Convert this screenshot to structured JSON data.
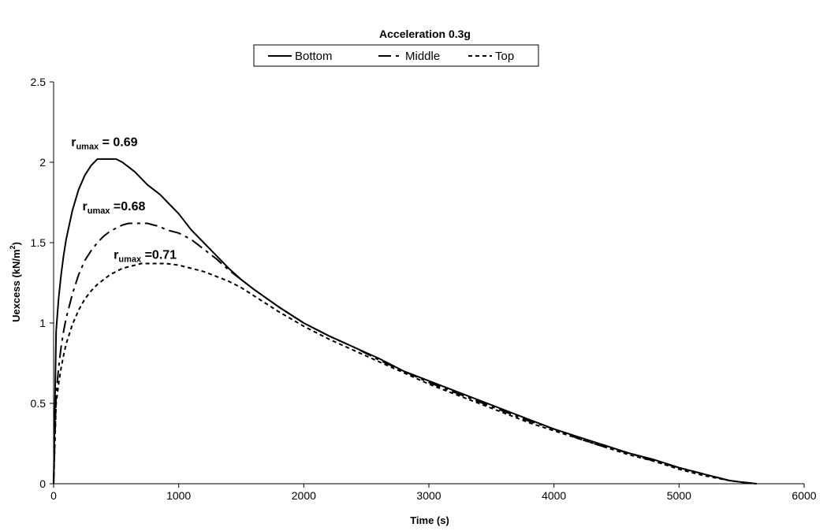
{
  "chart_data": {
    "type": "line",
    "title": "Acceleration 0.3g",
    "xlabel": "Time (s)",
    "ylabel_main": "Uexcess (kN/m",
    "ylabel_sup": "2",
    "ylabel_tail": ")",
    "xlim": [
      0,
      6000
    ],
    "ylim": [
      0,
      2.5
    ],
    "xticks": [
      0,
      1000,
      2000,
      3000,
      4000,
      5000,
      6000
    ],
    "xtick_labels": [
      "0",
      "1000",
      "2000",
      "3000",
      "4000",
      "5000",
      "6000"
    ],
    "yticks": [
      0,
      0.5,
      1,
      1.5,
      2,
      2.5
    ],
    "ytick_labels": [
      "0",
      "0.5",
      "1",
      "1.5",
      "2",
      "2.5"
    ],
    "grid": false,
    "legend_position": "top-center",
    "series": [
      {
        "name": "Bottom",
        "style": "solid",
        "color": "#000000",
        "x": [
          0,
          20,
          40,
          60,
          80,
          100,
          150,
          200,
          250,
          300,
          350,
          400,
          450,
          500,
          550,
          600,
          650,
          700,
          750,
          800,
          850,
          900,
          1000,
          1100,
          1200,
          1300,
          1400,
          1500,
          1600,
          1800,
          2000,
          2200,
          2400,
          2600,
          2800,
          3000,
          3200,
          3400,
          3600,
          3800,
          4000,
          4200,
          4400,
          4600,
          4800,
          5000,
          5200,
          5400,
          5500,
          5620
        ],
        "y": [
          0,
          0.95,
          1.15,
          1.3,
          1.42,
          1.52,
          1.7,
          1.83,
          1.92,
          1.98,
          2.02,
          2.02,
          2.02,
          2.02,
          2.0,
          1.97,
          1.94,
          1.9,
          1.86,
          1.83,
          1.8,
          1.76,
          1.68,
          1.58,
          1.5,
          1.42,
          1.34,
          1.27,
          1.21,
          1.1,
          1.0,
          0.92,
          0.85,
          0.78,
          0.7,
          0.64,
          0.58,
          0.52,
          0.46,
          0.4,
          0.34,
          0.29,
          0.24,
          0.19,
          0.15,
          0.1,
          0.06,
          0.02,
          0.01,
          0.0
        ]
      },
      {
        "name": "Middle",
        "style": "dashdot",
        "color": "#000000",
        "x": [
          0,
          20,
          40,
          60,
          80,
          100,
          150,
          200,
          250,
          300,
          350,
          400,
          450,
          500,
          550,
          600,
          650,
          700,
          750,
          800,
          850,
          900,
          1000,
          1100,
          1200,
          1300,
          1400,
          1500,
          1600,
          1800,
          2000,
          2200,
          2400,
          2600,
          2800,
          3000,
          3200,
          3400,
          3600,
          3800,
          4000,
          4200,
          4400,
          4600,
          4800,
          5000,
          5200,
          5400,
          5500,
          5620
        ],
        "y": [
          0,
          0.55,
          0.72,
          0.85,
          0.95,
          1.03,
          1.18,
          1.3,
          1.39,
          1.45,
          1.5,
          1.54,
          1.57,
          1.59,
          1.61,
          1.62,
          1.62,
          1.62,
          1.62,
          1.61,
          1.6,
          1.58,
          1.56,
          1.52,
          1.46,
          1.4,
          1.33,
          1.27,
          1.21,
          1.1,
          1.0,
          0.92,
          0.85,
          0.77,
          0.7,
          0.63,
          0.57,
          0.51,
          0.45,
          0.39,
          0.34,
          0.28,
          0.23,
          0.19,
          0.14,
          0.1,
          0.06,
          0.02,
          0.01,
          0.0
        ]
      },
      {
        "name": "Top",
        "style": "dotted",
        "color": "#000000",
        "x": [
          0,
          20,
          40,
          60,
          80,
          100,
          150,
          200,
          250,
          300,
          350,
          400,
          450,
          500,
          550,
          600,
          650,
          700,
          750,
          800,
          850,
          900,
          1000,
          1100,
          1200,
          1300,
          1400,
          1500,
          1600,
          1800,
          2000,
          2200,
          2400,
          2600,
          2800,
          3000,
          3200,
          3400,
          3600,
          3800,
          4000,
          4200,
          4400,
          4600,
          4800,
          5000,
          5200,
          5400,
          5500,
          5620
        ],
        "y": [
          0,
          0.5,
          0.62,
          0.72,
          0.8,
          0.87,
          0.99,
          1.08,
          1.15,
          1.2,
          1.24,
          1.27,
          1.3,
          1.32,
          1.34,
          1.35,
          1.36,
          1.37,
          1.37,
          1.37,
          1.37,
          1.37,
          1.36,
          1.34,
          1.32,
          1.29,
          1.26,
          1.22,
          1.17,
          1.07,
          0.98,
          0.9,
          0.83,
          0.76,
          0.69,
          0.62,
          0.56,
          0.5,
          0.44,
          0.38,
          0.33,
          0.28,
          0.23,
          0.18,
          0.14,
          0.09,
          0.05,
          0.02,
          0.01,
          0.0
        ]
      }
    ],
    "annotations": [
      {
        "main": "r",
        "sub": "umax",
        "text": " = 0.69",
        "x": 140,
        "y": 2.1
      },
      {
        "main": "r",
        "sub": "umax",
        "text": " =0.68",
        "x": 230,
        "y": 1.7
      },
      {
        "main": "r",
        "sub": "umax",
        "text": " =0.71",
        "x": 480,
        "y": 1.4
      }
    ]
  }
}
